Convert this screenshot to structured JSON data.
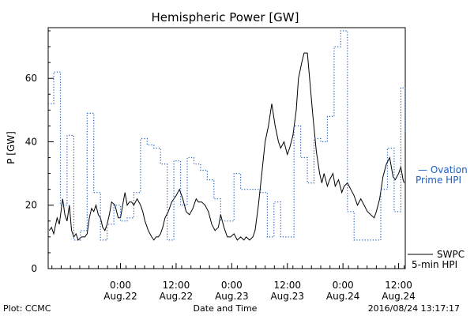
{
  "chart_data": {
    "type": "line",
    "title": "Hemispheric Power [GW]",
    "xlabel": "Date and Time",
    "ylabel": "P [GW]",
    "ylim": [
      0,
      76
    ],
    "xlim": [
      -6.5,
      25.6
    ],
    "x_unit": "hours since 2016-08-22 00:00 UT",
    "yticks": [
      0,
      20,
      40,
      60
    ],
    "xticks": [
      {
        "x": 0,
        "time": "0:00",
        "date": "Aug.22"
      },
      {
        "x": 5,
        "time": "12:00",
        "date": "Aug.22"
      },
      {
        "x": 10,
        "time": "0:00",
        "date": "Aug.23"
      },
      {
        "x": 15,
        "time": "12:00",
        "date": "Aug.23"
      },
      {
        "x": 20,
        "time": "0:00",
        "date": "Aug.24"
      },
      {
        "x": 25,
        "time": "12:00",
        "date": "Aug.24"
      }
    ],
    "grid": false,
    "series": [
      {
        "name": "SWPC 5-min HPI",
        "color": "#000000",
        "style": "solid",
        "x": [
          -6.4,
          -6.2,
          -6.0,
          -5.7,
          -5.5,
          -5.2,
          -5.0,
          -4.8,
          -4.6,
          -4.4,
          -4.2,
          -4.0,
          -3.8,
          -3.5,
          -3.2,
          -3.0,
          -2.8,
          -2.6,
          -2.4,
          -2.2,
          -2.0,
          -1.8,
          -1.6,
          -1.4,
          -1.2,
          -1.0,
          -0.8,
          -0.5,
          -0.2,
          0.0,
          0.2,
          0.4,
          0.6,
          0.8,
          1.0,
          1.2,
          1.5,
          1.8,
          2.0,
          2.2,
          2.5,
          2.8,
          3.0,
          3.2,
          3.4,
          3.6,
          3.8,
          4.0,
          4.3,
          4.6,
          5.0,
          5.3,
          5.6,
          5.9,
          6.2,
          6.5,
          6.8,
          7.0,
          7.3,
          7.6,
          7.9,
          8.2,
          8.5,
          8.8,
          9.0,
          9.3,
          9.6,
          9.9,
          10.2,
          10.5,
          10.8,
          11.1,
          11.3,
          11.6,
          11.9,
          12.1,
          12.4,
          12.7,
          13.0,
          13.3,
          13.6,
          13.9,
          14.2,
          14.4,
          14.7,
          15.0,
          15.2,
          15.5,
          15.8,
          16.0,
          16.3,
          16.5,
          16.8,
          17.0,
          17.3,
          17.6,
          17.9,
          18.1,
          18.3,
          18.6,
          18.8,
          19.1,
          19.3,
          19.6,
          19.9,
          20.1,
          20.4,
          20.7,
          21.0,
          21.3,
          21.6,
          21.9,
          22.2,
          22.5,
          22.8,
          23.0,
          23.3,
          23.6,
          23.9,
          24.2,
          24.5,
          24.7,
          25.0,
          25.2,
          25.4,
          25.5
        ],
        "values": [
          12,
          13,
          11,
          16,
          14,
          22,
          17,
          15,
          20,
          12,
          10,
          11,
          9,
          10,
          10,
          11,
          16,
          19,
          18,
          20,
          17,
          16,
          13,
          12,
          14,
          17,
          21,
          20,
          16,
          16,
          20,
          24,
          20,
          21,
          21,
          20,
          22,
          20,
          18,
          15,
          12,
          10,
          9,
          10,
          10,
          11,
          13,
          16,
          18,
          21,
          23,
          25,
          22,
          18,
          17,
          19,
          22,
          21,
          21,
          20,
          18,
          14,
          12,
          13,
          17,
          13,
          10,
          10,
          11,
          9,
          10,
          9,
          10,
          9,
          10,
          12,
          20,
          30,
          40,
          45,
          52,
          45,
          40,
          38,
          40,
          36,
          38,
          42,
          50,
          60,
          65,
          68,
          68,
          60,
          48,
          37,
          30,
          27,
          30,
          26,
          28,
          30,
          26,
          28,
          24,
          26,
          27,
          25,
          23,
          20,
          22,
          20,
          18,
          17,
          16,
          18,
          22,
          29,
          33,
          35,
          29,
          28,
          30,
          32,
          28,
          27
        ],
        "legend": [
          "SWPC",
          "5-min HPI"
        ]
      },
      {
        "name": "Ovation Prime HPI",
        "color": "#1f5fbf",
        "style": "dotted",
        "x": [
          -6.5,
          -6.0,
          -5.4,
          -4.8,
          -4.2,
          -3.6,
          -3.0,
          -2.4,
          -1.8,
          -1.2,
          -0.6,
          0.0,
          0.6,
          1.2,
          1.8,
          2.4,
          3.0,
          3.6,
          4.2,
          4.8,
          5.4,
          6.0,
          6.6,
          7.2,
          7.8,
          8.4,
          9.0,
          9.6,
          10.2,
          10.8,
          11.4,
          12.0,
          12.6,
          13.2,
          13.8,
          14.4,
          15.0,
          15.6,
          16.2,
          16.8,
          17.4,
          18.0,
          18.6,
          19.2,
          19.8,
          20.4,
          21.0,
          21.6,
          22.2,
          22.8,
          23.4,
          24.0,
          24.6,
          25.2,
          25.6
        ],
        "values": [
          52,
          62,
          20,
          42,
          9,
          12,
          49,
          24,
          9,
          14,
          20,
          15,
          16,
          24,
          41,
          39,
          38,
          33,
          9,
          34,
          20,
          35,
          33,
          31,
          28,
          22,
          15,
          15,
          30,
          25,
          25,
          25,
          24,
          10,
          21,
          10,
          10,
          45,
          35,
          27,
          41,
          40,
          48,
          70,
          75,
          18,
          9,
          9,
          9,
          9,
          25,
          38,
          18,
          57,
          43
        ],
        "legend": [
          "— Ovation",
          "Prime HPI"
        ]
      }
    ]
  },
  "footer": {
    "left": "Plot: CCMC",
    "timestamp": "2016/08/24 13:17:17"
  }
}
